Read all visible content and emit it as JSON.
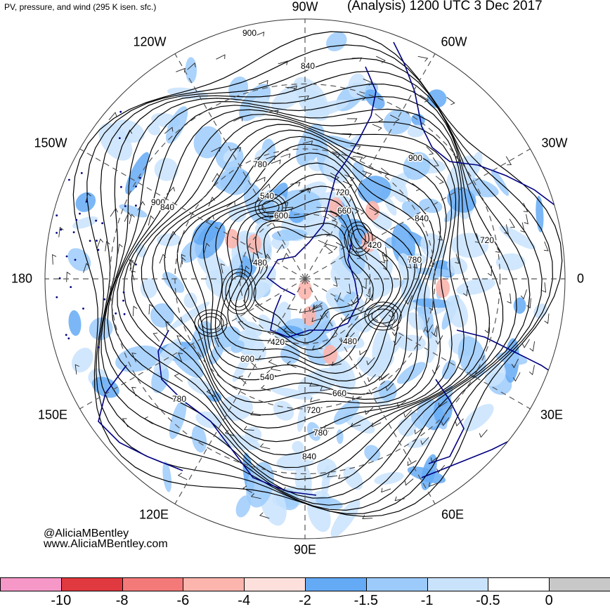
{
  "header": {
    "left": "PV, pressure, and wind (295 K isen. sfc.)",
    "right": "(Analysis) 1200 UTC 3 Dec 2017"
  },
  "longitude_labels": [
    "90W",
    "60W",
    "30W",
    "0",
    "30E",
    "60E",
    "90E",
    "120E",
    "150E",
    "180",
    "150W",
    "120W"
  ],
  "contour_labels": [
    "900",
    "840",
    "780",
    "720",
    "660",
    "600",
    "540",
    "480",
    "420",
    "420",
    "480",
    "540",
    "600",
    "660",
    "720",
    "780",
    "840",
    "900",
    "840",
    "780",
    "720",
    "900",
    "840",
    "780"
  ],
  "credits": {
    "line1": "@AliciaMBentley",
    "line2": "www.AliciaMBentley.com"
  },
  "colorbar": {
    "labels": [
      "-10",
      "-8",
      "-6",
      "-4",
      "-2",
      "-1.5",
      "-1",
      "-0.5",
      "0"
    ],
    "colors": [
      "#f598c8",
      "#e0393f",
      "#f47a7a",
      "#fbb5ad",
      "#fde0dc",
      "#64aaf5",
      "#9ccbfb",
      "#c9e3fd",
      "#ffffff",
      "#c8c8c8"
    ]
  },
  "map": {
    "projection": "north polar stereographic",
    "land_outline_color": "#000080",
    "contour_color": "#000000",
    "graticule_color": "#555555"
  }
}
